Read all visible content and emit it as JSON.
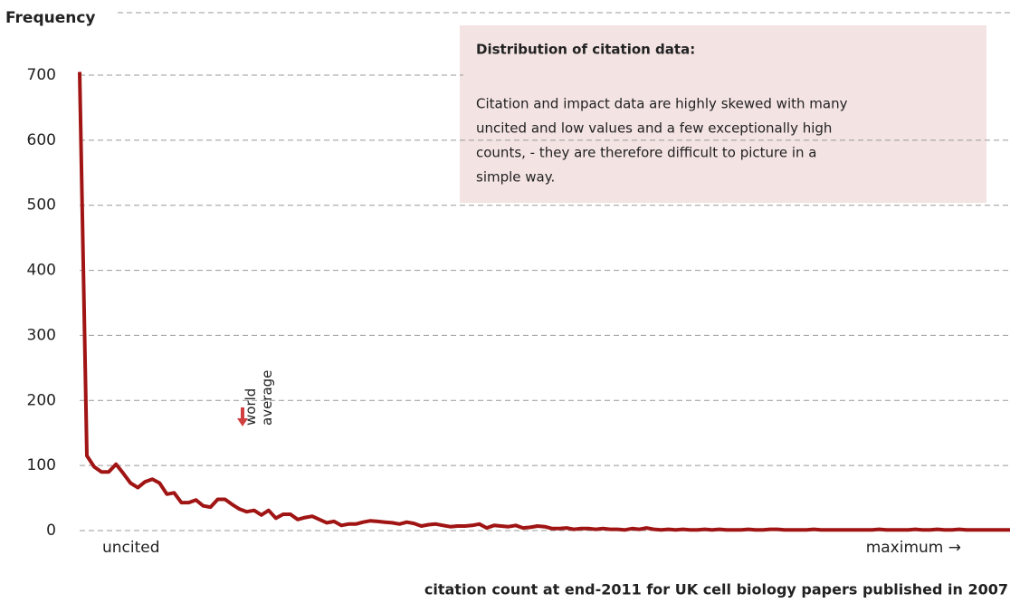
{
  "chart_data": {
    "type": "line",
    "y_axis_label": "Frequency",
    "x_axis_label": "citation count at end-2011 for UK cell biology papers published in 2007",
    "x_start_label": "uncited",
    "x_end_label": "maximum →",
    "annotation": {
      "lines": [
        "world",
        "average"
      ]
    },
    "text_box": {
      "title": "Distribution of citation data:",
      "lines": [
        "Citation and impact data are highly skewed with many",
        "uncited and low values and a few exceptionally high",
        "counts, -  they are therefore difficult to picture in a",
        "simple way."
      ]
    },
    "series": [
      {
        "name": "Frequency",
        "color": "#a01414",
        "values": [
          705,
          115,
          98,
          90,
          90,
          102,
          88,
          73,
          66,
          75,
          79,
          73,
          56,
          58,
          43,
          43,
          47,
          38,
          36,
          48,
          48,
          40,
          33,
          29,
          31,
          24,
          31,
          19,
          25,
          25,
          17,
          20,
          22,
          17,
          12,
          14,
          8,
          10,
          10,
          13,
          15,
          14,
          13,
          12,
          10,
          13,
          11,
          7,
          9,
          10,
          8,
          6,
          7,
          7,
          8,
          10,
          4,
          8,
          7,
          6,
          8,
          4,
          5,
          7,
          6,
          3,
          3,
          4,
          2,
          3,
          3,
          2,
          3,
          2,
          2,
          1,
          3,
          2,
          4,
          2,
          1,
          2,
          1,
          2,
          1,
          1,
          2,
          1,
          2,
          1,
          1,
          1,
          2,
          1,
          1,
          2,
          2,
          1,
          1,
          1,
          1,
          2,
          1,
          1,
          1,
          1,
          1,
          1,
          1,
          1,
          2,
          1,
          1,
          1,
          1,
          2,
          1,
          1,
          2,
          1,
          1,
          2,
          1,
          1,
          1,
          1,
          1,
          1,
          1
        ]
      }
    ],
    "ylim": [
      0,
      700
    ],
    "yticks": [
      0,
      100,
      200,
      300,
      400,
      500,
      600,
      700
    ],
    "grid": true
  }
}
